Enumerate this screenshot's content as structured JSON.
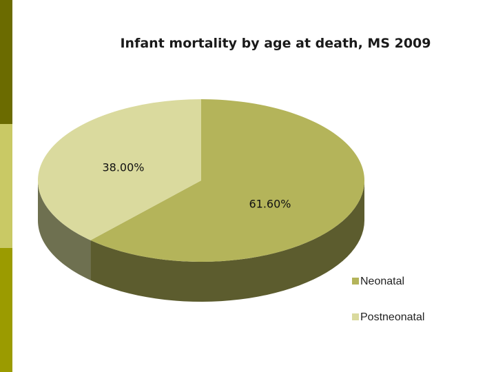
{
  "colors": {
    "band_dark": "#6b6b00",
    "band_light": "#c9c965",
    "band_olive": "#9b9b00",
    "neonatal_top": "#b4b45a",
    "neonatal_side": "#5c5c2e",
    "postneonatal_top": "#dada9e",
    "postneonatal_side": "#6e7050"
  },
  "chart_data": {
    "type": "pie",
    "title": "Infant mortality by age at death, MS 2009",
    "categories": [
      "Neonatal",
      "Postneonatal"
    ],
    "values": [
      61.6,
      38.0
    ],
    "data_labels": [
      "61.60%",
      "38.00%"
    ],
    "style": "3d",
    "legend_position": "bottom-right"
  }
}
